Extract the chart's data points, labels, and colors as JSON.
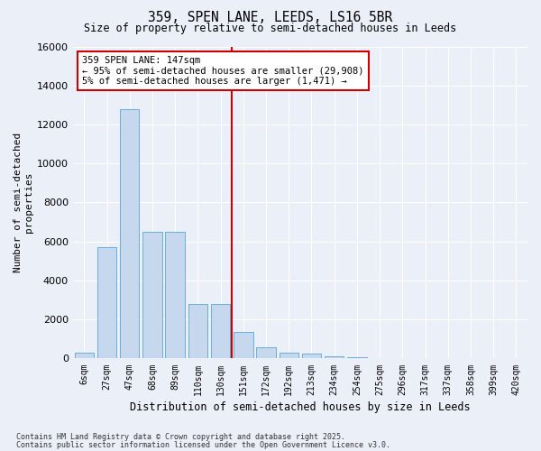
{
  "title": "359, SPEN LANE, LEEDS, LS16 5BR",
  "subtitle": "Size of property relative to semi-detached houses in Leeds",
  "xlabel": "Distribution of semi-detached houses by size in Leeds",
  "ylabel": "Number of semi-detached\nproperties",
  "footnote1": "Contains HM Land Registry data © Crown copyright and database right 2025.",
  "footnote2": "Contains public sector information licensed under the Open Government Licence v3.0.",
  "annotation_title": "359 SPEN LANE: 147sqm",
  "annotation_line1": "← 95% of semi-detached houses are smaller (29,908)",
  "annotation_line2": "5% of semi-detached houses are larger (1,471) →",
  "bar_color": "#c5d8ed",
  "bar_edge_color": "#6aaed6",
  "highlight_line_color": "#cc0000",
  "background_color": "#eaeff8",
  "grid_color": "#ffffff",
  "categories": [
    "6sqm",
    "27sqm",
    "47sqm",
    "68sqm",
    "89sqm",
    "110sqm",
    "130sqm",
    "151sqm",
    "172sqm",
    "192sqm",
    "213sqm",
    "234sqm",
    "254sqm",
    "275sqm",
    "296sqm",
    "317sqm",
    "337sqm",
    "358sqm",
    "399sqm",
    "420sqm"
  ],
  "values": [
    310,
    5700,
    12800,
    6500,
    6500,
    2800,
    2800,
    1350,
    580,
    310,
    250,
    90,
    50,
    25,
    10,
    5,
    3,
    2,
    1,
    0
  ],
  "highlight_bar_index": 7,
  "ylim": [
    0,
    16000
  ],
  "yticks": [
    0,
    2000,
    4000,
    6000,
    8000,
    10000,
    12000,
    14000,
    16000
  ]
}
